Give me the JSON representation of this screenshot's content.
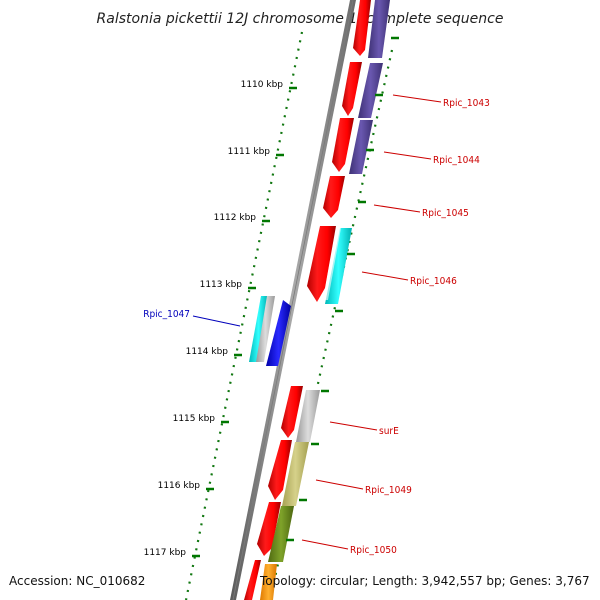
{
  "title": "Ralstonia pickettii 12J chromosome 1, complete sequence",
  "footer": {
    "accession": "Accession: NC_010682",
    "topology": "Topology: circular; Length: 3,942,557 bp; Genes: 3,767"
  },
  "ticks": [
    {
      "label": "1110 kbp"
    },
    {
      "label": "1111 kbp"
    },
    {
      "label": "1112 kbp"
    },
    {
      "label": "1113 kbp"
    },
    {
      "label": "1114 kbp"
    },
    {
      "label": "1115 kbp"
    },
    {
      "label": "1116 kbp"
    },
    {
      "label": "1117 kbp"
    }
  ],
  "genes": [
    {
      "label": "Rpic_1043",
      "color": "#cc0000"
    },
    {
      "label": "Rpic_1044",
      "color": "#cc0000"
    },
    {
      "label": "Rpic_1045",
      "color": "#cc0000"
    },
    {
      "label": "Rpic_1046",
      "color": "#cc0000"
    },
    {
      "label": "Rpic_1047",
      "color": "#0000bb"
    },
    {
      "label": "surE",
      "color": "#cc0000"
    },
    {
      "label": "Rpic_1049",
      "color": "#cc0000"
    },
    {
      "label": "Rpic_1050",
      "color": "#cc0000"
    }
  ],
  "colors": {
    "backbone": "#888888",
    "cds": "#ff0000",
    "cog_purple": "#5b4a9a",
    "cog_cyan": "#00e6e6",
    "cog_grey": "#bdbdbd",
    "cog_khaki": "#c2bd6e",
    "cog_olive": "#6b8a1f",
    "cog_orange": "#ff9900",
    "gene_blue": "#0000ff",
    "gc_green": "#007700"
  }
}
